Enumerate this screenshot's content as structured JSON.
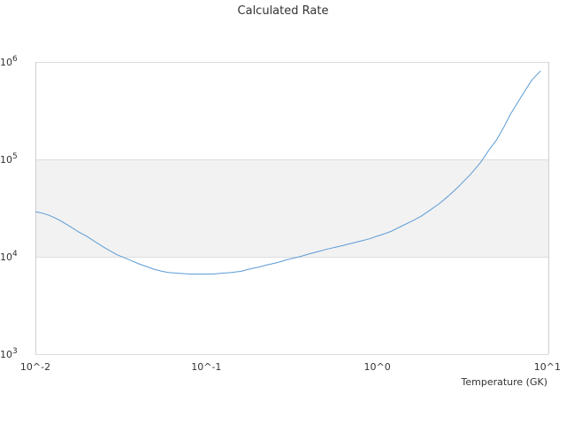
{
  "chart_data": {
    "type": "line",
    "title": "Calculated Rate",
    "xlabel": "Temperature (GK)",
    "ylabel": "",
    "x_scale": "log",
    "y_scale": "log",
    "xlim": [
      0.01,
      10
    ],
    "ylim": [
      1000,
      1000000
    ],
    "x_ticks": [
      {
        "value": 0.01,
        "label": "10^-2"
      },
      {
        "value": 0.1,
        "label": "10^-1"
      },
      {
        "value": 1,
        "label": "10^0"
      },
      {
        "value": 10,
        "label": "10^1"
      }
    ],
    "y_ticks": [
      {
        "value": 1000,
        "base": "10",
        "exp": "3"
      },
      {
        "value": 10000,
        "base": "10",
        "exp": "4"
      },
      {
        "value": 100000,
        "base": "10",
        "exp": "5"
      },
      {
        "value": 1000000,
        "base": "10",
        "exp": "6"
      }
    ],
    "shaded_band": {
      "from": 10000,
      "to": 100000,
      "color": "#f2f2f2"
    },
    "grid": true,
    "legend": "none",
    "series": [
      {
        "color": "#5c9bd5",
        "x": [
          0.01,
          0.011,
          0.012,
          0.013,
          0.014,
          0.016,
          0.018,
          0.02,
          0.023,
          0.026,
          0.03,
          0.035,
          0.04,
          0.045,
          0.05,
          0.055,
          0.06,
          0.07,
          0.08,
          0.09,
          0.1,
          0.11,
          0.12,
          0.14,
          0.16,
          0.18,
          0.2,
          0.23,
          0.26,
          0.3,
          0.35,
          0.4,
          0.45,
          0.5,
          0.6,
          0.7,
          0.8,
          0.9,
          1.0,
          1.1,
          1.2,
          1.4,
          1.6,
          1.8,
          2.0,
          2.3,
          2.6,
          3.0,
          3.5,
          4.0,
          4.5,
          5.0,
          5.5,
          6.0,
          7.0,
          8.0,
          9.0
        ],
        "y": [
          29000,
          28000,
          26700,
          25100,
          23500,
          20400,
          17900,
          16200,
          13800,
          12100,
          10500,
          9400,
          8500,
          7900,
          7400,
          7100,
          6900,
          6750,
          6650,
          6650,
          6650,
          6650,
          6750,
          6900,
          7100,
          7500,
          7800,
          8300,
          8700,
          9400,
          10000,
          10700,
          11300,
          11900,
          12800,
          13700,
          14500,
          15300,
          16300,
          17200,
          18200,
          20800,
          23300,
          26000,
          29500,
          35000,
          42000,
          53000,
          70000,
          92000,
          125000,
          160000,
          215000,
          290000,
          450000,
          650000,
          810000
        ]
      }
    ]
  }
}
